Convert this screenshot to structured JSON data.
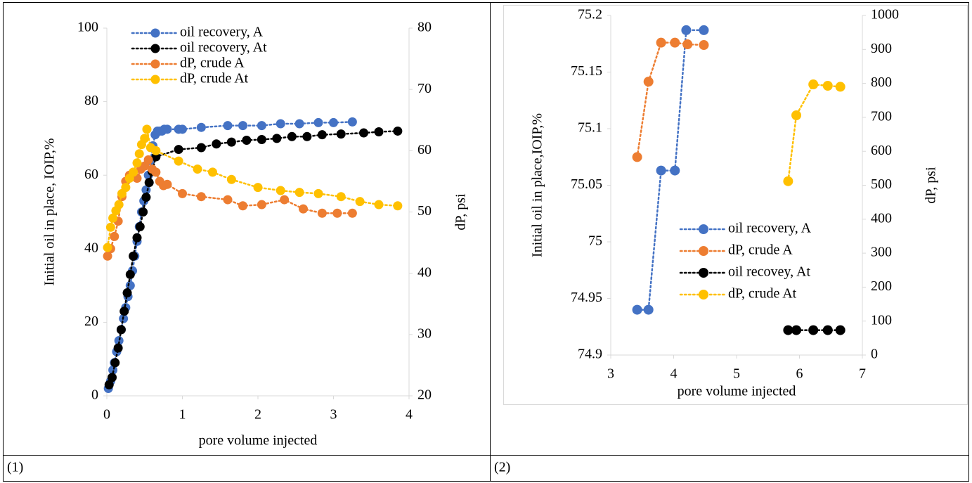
{
  "chart_data": [
    {
      "type": "scatter",
      "x_label": "pore volume injected",
      "y_label": "Initial oil in place, IOIP,%",
      "y2_label": "dP, psi",
      "xlim": [
        0,
        4
      ],
      "xticks": [
        0,
        1,
        2,
        3,
        4
      ],
      "ylim": [
        0,
        100
      ],
      "yticks": [
        0,
        20,
        40,
        60,
        80,
        100
      ],
      "y2lim": [
        20,
        80
      ],
      "y2ticks": [
        20,
        30,
        40,
        50,
        60,
        70,
        80
      ],
      "line_style": "dotted",
      "series": [
        {
          "name": "oil recovery, A",
          "color": "#4472c4",
          "axis": "y",
          "x": [
            0.02,
            0.05,
            0.08,
            0.1,
            0.13,
            0.16,
            0.19,
            0.22,
            0.25,
            0.28,
            0.31,
            0.34,
            0.37,
            0.4,
            0.43,
            0.46,
            0.49,
            0.52,
            0.55,
            0.58,
            0.61,
            0.64,
            0.67,
            0.7,
            0.73,
            0.76,
            0.8,
            0.95,
            1.0,
            1.25,
            1.6,
            1.8,
            2.05,
            2.3,
            2.55,
            2.8,
            3.0,
            3.25
          ],
          "values": [
            2,
            4,
            7,
            9,
            12,
            15,
            18,
            21,
            24,
            27,
            30,
            34,
            38,
            42,
            46,
            50,
            53,
            56,
            60,
            64,
            68,
            71,
            72,
            72,
            72,
            72.5,
            72.5,
            72.5,
            72.5,
            73,
            73.5,
            73.5,
            73.5,
            74,
            74,
            74.3,
            74.3,
            74.5
          ]
        },
        {
          "name": "oil recovery, At",
          "color": "#000000",
          "axis": "y",
          "x": [
            0.03,
            0.07,
            0.11,
            0.15,
            0.19,
            0.23,
            0.27,
            0.31,
            0.35,
            0.4,
            0.44,
            0.48,
            0.52,
            0.56,
            0.6,
            0.65,
            0.95,
            1.25,
            1.45,
            1.65,
            1.85,
            2.05,
            2.25,
            2.45,
            2.65,
            2.85,
            3.1,
            3.4,
            3.6,
            3.85
          ],
          "values": [
            3,
            5,
            9,
            13,
            18,
            23,
            28,
            33,
            38,
            43,
            46,
            50,
            54,
            58,
            61,
            65,
            67,
            67.5,
            68.5,
            69,
            69.5,
            69.7,
            70,
            70.5,
            70.5,
            71,
            71.2,
            71.5,
            71.8,
            72
          ]
        },
        {
          "name": "dP, crude A",
          "color": "#ed7d31",
          "axis": "y2",
          "x": [
            0.01,
            0.05,
            0.1,
            0.15,
            0.2,
            0.25,
            0.3,
            0.35,
            0.4,
            0.45,
            0.5,
            0.55,
            0.6,
            0.65,
            0.7,
            0.75,
            0.8,
            1.0,
            1.25,
            1.6,
            1.8,
            2.05,
            2.35,
            2.6,
            2.85,
            3.05,
            3.25
          ],
          "values": [
            42.8,
            44,
            46,
            48.5,
            52.5,
            55,
            56,
            56,
            55.5,
            57,
            57.5,
            58.5,
            57,
            56.5,
            55,
            54.3,
            54.5,
            53,
            52.5,
            52,
            51,
            51.2,
            52,
            50.5,
            49.8,
            49.8,
            49.8
          ]
        },
        {
          "name": "dP, crude At",
          "color": "#ffc000",
          "axis": "y2",
          "x": [
            0.01,
            0.05,
            0.08,
            0.12,
            0.16,
            0.2,
            0.25,
            0.3,
            0.35,
            0.4,
            0.43,
            0.46,
            0.5,
            0.53,
            0.58,
            0.65,
            0.95,
            1.2,
            1.4,
            1.65,
            2.0,
            2.3,
            2.55,
            2.8,
            3.1,
            3.35,
            3.6,
            3.85
          ],
          "values": [
            44.2,
            47.5,
            49,
            50.2,
            51.2,
            53,
            54,
            55.5,
            56.5,
            58,
            59.5,
            61,
            62,
            63.5,
            60.5,
            60,
            58.3,
            57,
            56.5,
            55.3,
            54,
            53.5,
            53.2,
            53,
            52.5,
            51.7,
            51.2,
            51
          ]
        }
      ]
    },
    {
      "type": "scatter",
      "x_label": "pore volume injected",
      "y_label": "Initial oil in place,IOIP,%",
      "y2_label": "dP, psi",
      "xlim": [
        3,
        7
      ],
      "xticks": [
        3,
        4,
        5,
        6,
        7
      ],
      "ylim": [
        74.9,
        75.2
      ],
      "yticks": [
        74.9,
        74.95,
        75,
        75.05,
        75.1,
        75.15,
        75.2
      ],
      "y2lim": [
        0,
        1000
      ],
      "y2ticks": [
        0,
        100,
        200,
        300,
        400,
        500,
        600,
        700,
        800,
        900,
        1000
      ],
      "line_style": "dotted",
      "series": [
        {
          "name": "oil recovery, A",
          "color": "#4472c4",
          "axis": "y",
          "x": [
            3.42,
            3.6,
            3.8,
            4.02,
            4.2,
            4.48
          ],
          "values": [
            74.94,
            74.94,
            75.063,
            75.063,
            75.187,
            75.187
          ]
        },
        {
          "name": "dP, crude A",
          "color": "#ed7d31",
          "axis": "y2",
          "x": [
            3.42,
            3.6,
            3.8,
            4.02,
            4.22,
            4.48
          ],
          "values": [
            583,
            805,
            920,
            920,
            915,
            913
          ]
        },
        {
          "name": "oil recovey, At",
          "color": "#000000",
          "axis": "y",
          "x": [
            5.82,
            5.95,
            6.22,
            6.45,
            6.65
          ],
          "values": [
            74.922,
            74.922,
            74.922,
            74.922,
            74.922
          ]
        },
        {
          "name": "dP, crude At",
          "color": "#ffc000",
          "axis": "y2",
          "x": [
            5.82,
            5.95,
            6.22,
            6.45,
            6.65
          ],
          "values": [
            512,
            706,
            797,
            793,
            790
          ]
        }
      ]
    }
  ],
  "captions": [
    "(1)",
    "(2)"
  ]
}
